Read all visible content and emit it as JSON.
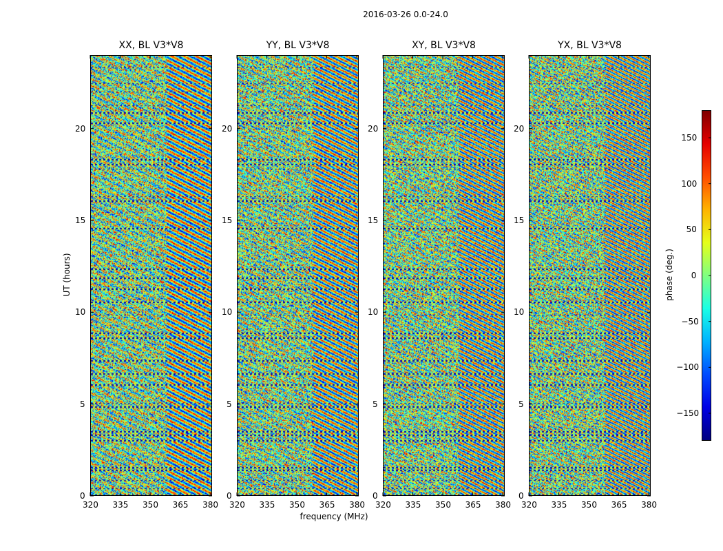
{
  "figure_title": "2016-03-26 0.0-24.0",
  "chart_data": [
    {
      "type": "heatmap",
      "title": "XX, BL V3*V8",
      "xlabel": "frequency (MHz)",
      "ylabel": "UT (hours)",
      "xlim": [
        320,
        381
      ],
      "ylim": [
        0,
        24
      ],
      "xticks": [
        "320",
        "335",
        "350",
        "365",
        "380"
      ],
      "yticks": [
        "0",
        "5",
        "10",
        "15",
        "20"
      ],
      "colorbar": "phase (deg.)"
    },
    {
      "type": "heatmap",
      "title": "YY, BL V3*V8",
      "xlabel": "frequency (MHz)",
      "ylabel": "UT (hours)",
      "xlim": [
        320,
        381
      ],
      "ylim": [
        0,
        24
      ],
      "xticks": [
        "320",
        "335",
        "350",
        "365",
        "380"
      ],
      "yticks": [
        "0",
        "5",
        "10",
        "15",
        "20"
      ],
      "colorbar": "phase (deg.)"
    },
    {
      "type": "heatmap",
      "title": "XY, BL V3*V8",
      "xlabel": "frequency (MHz)",
      "ylabel": "UT (hours)",
      "xlim": [
        320,
        381
      ],
      "ylim": [
        0,
        24
      ],
      "xticks": [
        "320",
        "335",
        "350",
        "365",
        "380"
      ],
      "yticks": [
        "0",
        "5",
        "10",
        "15",
        "20"
      ],
      "colorbar": "phase (deg.)"
    },
    {
      "type": "heatmap",
      "title": "YX, BL V3*V8",
      "xlabel": "frequency (MHz)",
      "ylabel": "UT (hours)",
      "xlim": [
        320,
        381
      ],
      "ylim": [
        0,
        24
      ],
      "xticks": [
        "320",
        "335",
        "350",
        "365",
        "380"
      ],
      "yticks": [
        "0",
        "5",
        "10",
        "15",
        "20"
      ],
      "colorbar": "phase (deg.)"
    }
  ],
  "shared_xlabel": "frequency (MHz)",
  "shared_ylabel": "UT (hours)",
  "colorbar": {
    "label": "phase (deg.)",
    "range": [
      -180,
      180
    ],
    "ticks": [
      "150",
      "100",
      "50",
      "0",
      "−50",
      "−100",
      "−150"
    ],
    "tick_values": [
      150,
      100,
      50,
      0,
      -50,
      -100,
      -150
    ],
    "colormap": "jet"
  },
  "flagged_hours": [
    0.1,
    0.45,
    0.9,
    1.45,
    1.6,
    3.05,
    3.35,
    3.55,
    4.9,
    5.1,
    6.1,
    6.7,
    7.4,
    8.65,
    8.9,
    9.9,
    10.6,
    11.3,
    11.9,
    12.4,
    14.6,
    16.1,
    16.35,
    17.85,
    18.1,
    18.35,
    20.35,
    20.9,
    21.3,
    22.05,
    22.5,
    23.4
  ]
}
